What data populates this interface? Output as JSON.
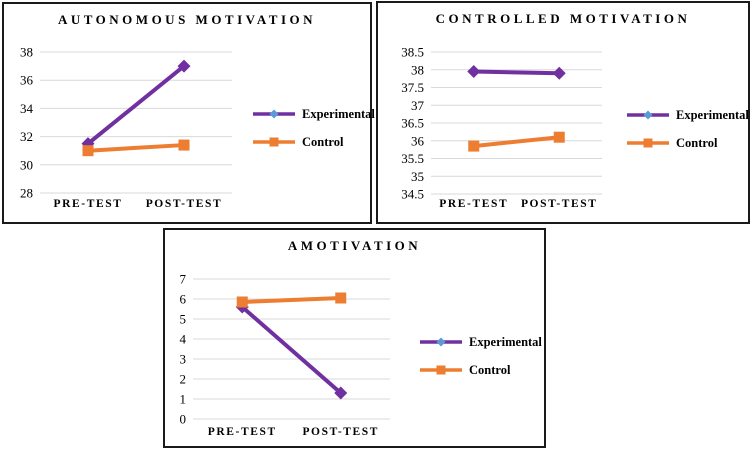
{
  "colors": {
    "experimental": "#7030A0",
    "control": "#ED7D31",
    "legend_marker_experimental": "#5B9BD5",
    "gridline": "#D9D9D9",
    "border": "#1a1a1a",
    "text": "#000000",
    "background": "#FFFFFF"
  },
  "chart_data": [
    {
      "type": "line",
      "title": "AUTONOMOUS MOTIVATION",
      "categories": [
        "PRE-TEST",
        "POST-TEST"
      ],
      "series": [
        {
          "name": "Experimental",
          "values": [
            31.5,
            37
          ],
          "color_key": "experimental",
          "marker": "diamond"
        },
        {
          "name": "Control",
          "values": [
            31,
            31.4
          ],
          "color_key": "control",
          "marker": "square"
        }
      ],
      "ylim": [
        28,
        38
      ],
      "ytick_step": 2,
      "grid": true,
      "legend_position": "right"
    },
    {
      "type": "line",
      "title": "CONTROLLED MOTIVATION",
      "categories": [
        "PRE-TEST",
        "POST-TEST"
      ],
      "series": [
        {
          "name": "Experimental",
          "values": [
            37.95,
            37.9
          ],
          "color_key": "experimental",
          "marker": "diamond"
        },
        {
          "name": "Control",
          "values": [
            35.85,
            36.1
          ],
          "color_key": "control",
          "marker": "square"
        }
      ],
      "ylim": [
        34.5,
        38.5
      ],
      "ytick_step": 0.5,
      "grid": true,
      "legend_position": "right"
    },
    {
      "type": "line",
      "title": "AMOTIVATION",
      "categories": [
        "PRE-TEST",
        "POST-TEST"
      ],
      "series": [
        {
          "name": "Experimental",
          "values": [
            5.6,
            1.3
          ],
          "color_key": "experimental",
          "marker": "diamond"
        },
        {
          "name": "Control",
          "values": [
            5.85,
            6.05
          ],
          "color_key": "control",
          "marker": "square"
        }
      ],
      "ylim": [
        0,
        7
      ],
      "ytick_step": 1,
      "grid": true,
      "legend_position": "right"
    }
  ]
}
